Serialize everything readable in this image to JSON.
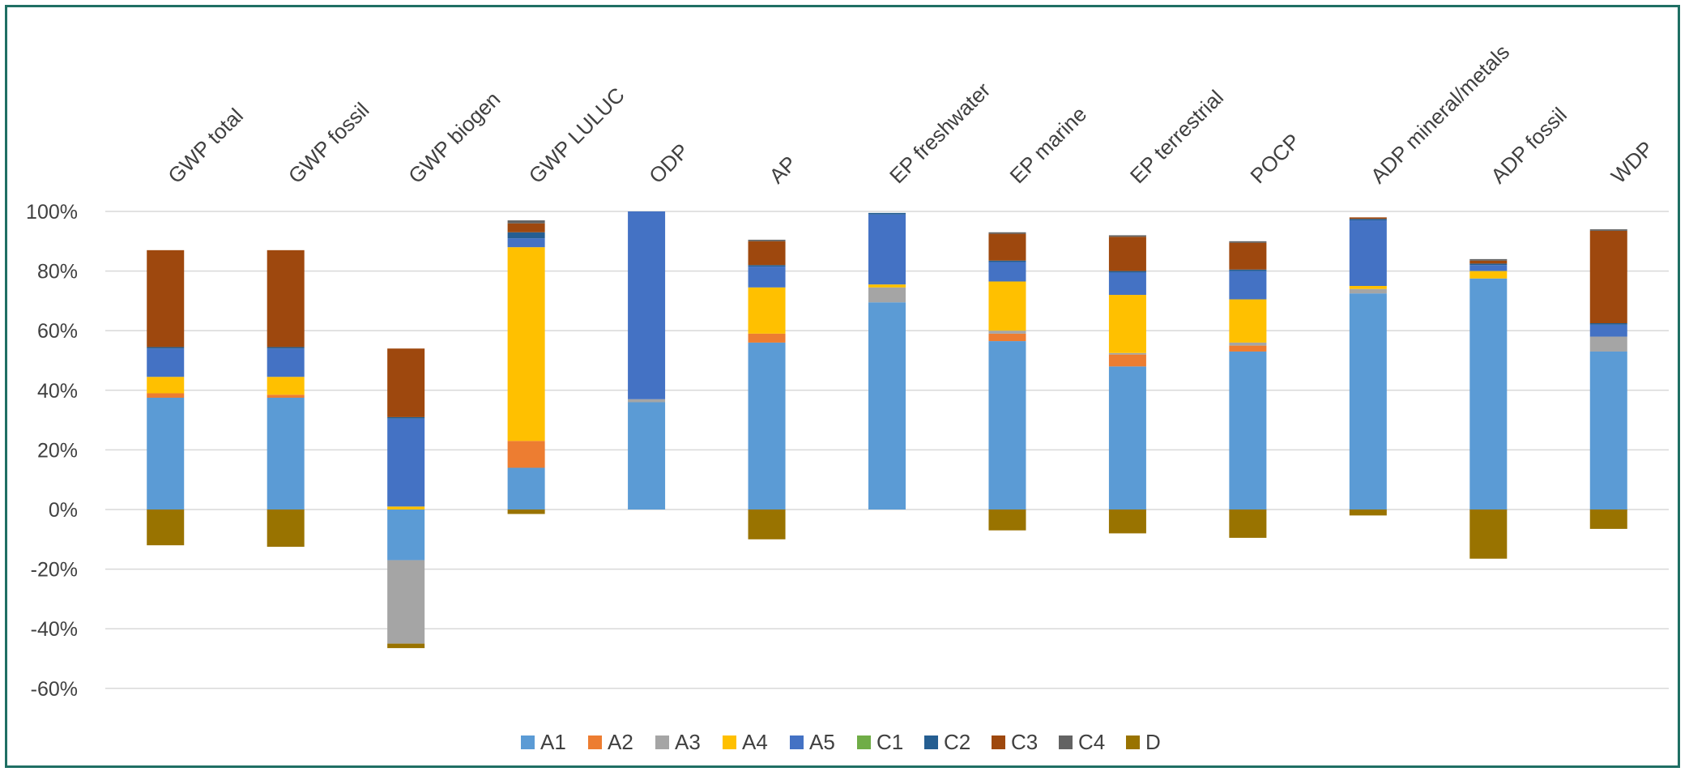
{
  "chart_data": {
    "type": "bar",
    "stacked": true,
    "title": "",
    "xlabel": "",
    "ylabel": "",
    "ylim": [
      -60,
      100
    ],
    "y_ticks": [
      "100%",
      "80%",
      "60%",
      "40%",
      "20%",
      "0%",
      "-20%",
      "-40%",
      "-60%"
    ],
    "y_tick_values": [
      100,
      80,
      60,
      40,
      20,
      0,
      -20,
      -40,
      -60
    ],
    "grid": true,
    "legend_position": "bottom",
    "categories": [
      "GWP total",
      "GWP fossil",
      "GWP biogen",
      "GWP LULUC",
      "ODP",
      "AP",
      "EP freshwater",
      "EP marine",
      "EP terrestrial",
      "POCP",
      "ADP mineral/metals",
      "ADP fossil",
      "WDP"
    ],
    "series": [
      {
        "name": "A1",
        "color": "#5b9bd5",
        "values": [
          37.5,
          37.5,
          -17,
          14,
          36,
          56,
          69.5,
          56.5,
          48,
          53,
          72.5,
          77.5,
          53
        ]
      },
      {
        "name": "A2",
        "color": "#ed7d31",
        "values": [
          1.5,
          1,
          0,
          9,
          0,
          3,
          0,
          2.5,
          4,
          2,
          0,
          0,
          0
        ]
      },
      {
        "name": "A3",
        "color": "#a5a5a5",
        "values": [
          0,
          0,
          -28,
          0,
          1,
          0,
          5,
          1,
          0.5,
          1,
          1.5,
          0,
          5
        ]
      },
      {
        "name": "A4",
        "color": "#ffc000",
        "values": [
          5.5,
          6,
          1,
          65,
          0,
          15.5,
          1,
          16.5,
          19.5,
          14.5,
          1,
          2.5,
          0
        ]
      },
      {
        "name": "A5",
        "color": "#4472c4",
        "values": [
          9.5,
          9.5,
          29.5,
          3,
          63,
          7,
          23.5,
          6.5,
          7.5,
          9.5,
          22,
          2,
          4
        ]
      },
      {
        "name": "C1",
        "color": "#70ad47",
        "values": [
          0,
          0,
          0,
          0,
          0,
          0,
          0,
          0,
          0,
          0,
          0,
          0,
          0
        ]
      },
      {
        "name": "C2",
        "color": "#255e91",
        "values": [
          0.5,
          0.5,
          0.5,
          2,
          0,
          0.5,
          0.5,
          0.5,
          0.5,
          0.5,
          0.5,
          0.5,
          0.5
        ]
      },
      {
        "name": "C3",
        "color": "#9e480e",
        "values": [
          32.5,
          32.5,
          23,
          3,
          0,
          8,
          0,
          9,
          11.5,
          9,
          0.5,
          1,
          31
        ]
      },
      {
        "name": "C4",
        "color": "#636363",
        "values": [
          0,
          0,
          0,
          1,
          0,
          0.5,
          0,
          0.5,
          0.5,
          0.5,
          0,
          0.5,
          0.5
        ]
      },
      {
        "name": "D",
        "color": "#997300",
        "values": [
          -12,
          -12.5,
          -1.5,
          -1.5,
          0,
          -10,
          0,
          -7,
          -8,
          -9.5,
          -2,
          -16.5,
          -6.5
        ]
      }
    ]
  }
}
